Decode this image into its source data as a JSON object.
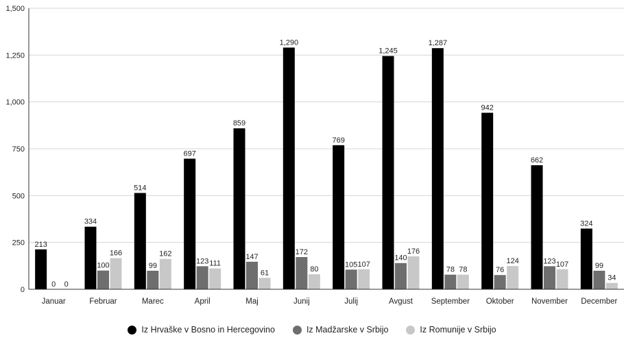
{
  "chart_data": {
    "type": "bar",
    "title": "",
    "xlabel": "",
    "ylabel": "",
    "ylim": [
      0,
      1500
    ],
    "yticks": [
      "0",
      "250",
      "500",
      "750",
      "1,000",
      "1,250",
      "1,500"
    ],
    "ytick_values": [
      0,
      250,
      500,
      750,
      1000,
      1250,
      1500
    ],
    "grid": true,
    "legend_position": "bottom",
    "categories": [
      "Januar",
      "Februar",
      "Marec",
      "April",
      "Maj",
      "Junij",
      "Julij",
      "Avgust",
      "September",
      "Oktober",
      "November",
      "December"
    ],
    "series": [
      {
        "name": "Iz Hrvaške v Bosno in Hercegovino",
        "color": "#000000",
        "values": [
          213,
          334,
          514,
          697,
          859,
          1290,
          769,
          1245,
          1287,
          942,
          662,
          324
        ],
        "labels": [
          "213",
          "334",
          "514",
          "697",
          "859",
          "1,290",
          "769",
          "1,245",
          "1,287",
          "942",
          "662",
          "324"
        ]
      },
      {
        "name": "Iz Madžarske v Srbijo",
        "color": "#6e6e6e",
        "values": [
          0,
          100,
          99,
          123,
          147,
          172,
          105,
          140,
          78,
          76,
          123,
          99
        ],
        "labels": [
          "0",
          "100",
          "99",
          "123",
          "147",
          "172",
          "105",
          "140",
          "78",
          "76",
          "123",
          "99"
        ]
      },
      {
        "name": "Iz Romunije v Srbijo",
        "color": "#c8c8c8",
        "values": [
          0,
          166,
          162,
          111,
          61,
          80,
          107,
          176,
          78,
          124,
          107,
          34
        ],
        "labels": [
          "0",
          "166",
          "162",
          "111",
          "61",
          "80",
          "107",
          "176",
          "78",
          "124",
          "107",
          "34"
        ]
      }
    ]
  }
}
